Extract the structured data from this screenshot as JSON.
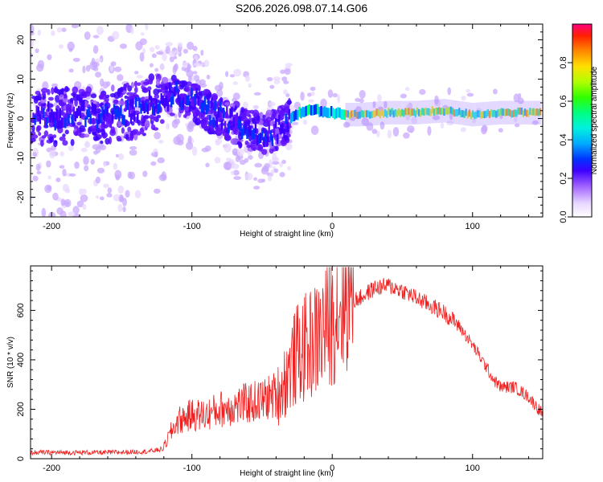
{
  "title": "S206.2026.098.07.14.G06",
  "chart_data": [
    {
      "type": "heatmap",
      "xlabel": "Height of straight line (km)",
      "ylabel": "Frequency (Hz)",
      "xlim": [
        -215,
        150
      ],
      "ylim": [
        -25,
        24
      ],
      "xticks": [
        -200,
        -100,
        0,
        100
      ],
      "yticks": [
        -20,
        -10,
        0,
        10,
        20
      ],
      "ridge_x": [
        -215,
        -200,
        -180,
        -160,
        -140,
        -120,
        -110,
        -100,
        -90,
        -80,
        -70,
        -60,
        -50,
        -40,
        -30,
        -20,
        -10,
        0,
        10,
        20,
        40,
        60,
        80,
        100,
        120,
        150
      ],
      "ridge_freq": [
        1,
        0.5,
        1,
        0.5,
        2,
        5,
        6,
        5,
        2,
        1,
        -1,
        -3,
        -4,
        -3,
        0,
        2,
        2,
        1.5,
        1,
        1,
        1.5,
        1.5,
        2,
        1,
        1.5,
        1.5
      ],
      "colorbar": {
        "label": "Normalized spectral amplitude",
        "range": [
          0,
          1
        ],
        "ticks": [
          "0.0",
          "0.2",
          "0.4",
          "0.6",
          "0.8"
        ]
      }
    },
    {
      "type": "line",
      "xlabel": "Height of straight line (km)",
      "ylabel": "SNR (10 * v/v)",
      "xlim": [
        -215,
        150
      ],
      "ylim": [
        0,
        780
      ],
      "xticks": [
        -200,
        -100,
        0,
        100
      ],
      "yticks": [
        0,
        200,
        400,
        600
      ],
      "series": [
        {
          "name": "SNR",
          "color": "#ee2020",
          "x": [
            -215,
            -200,
            -180,
            -160,
            -140,
            -130,
            -120,
            -115,
            -110,
            -100,
            -90,
            -80,
            -70,
            -60,
            -50,
            -40,
            -35,
            -30,
            -25,
            -20,
            -15,
            -10,
            -5,
            0,
            5,
            10,
            15,
            20,
            25,
            30,
            40,
            50,
            60,
            70,
            80,
            90,
            100,
            110,
            115,
            120,
            130,
            140,
            150
          ],
          "y": [
            25,
            25,
            25,
            25,
            28,
            30,
            40,
            90,
            130,
            150,
            150,
            170,
            180,
            190,
            200,
            220,
            270,
            330,
            380,
            400,
            420,
            440,
            480,
            520,
            560,
            600,
            640,
            650,
            670,
            690,
            700,
            680,
            650,
            620,
            590,
            540,
            460,
            370,
            320,
            290,
            290,
            250,
            180
          ]
        }
      ]
    }
  ]
}
